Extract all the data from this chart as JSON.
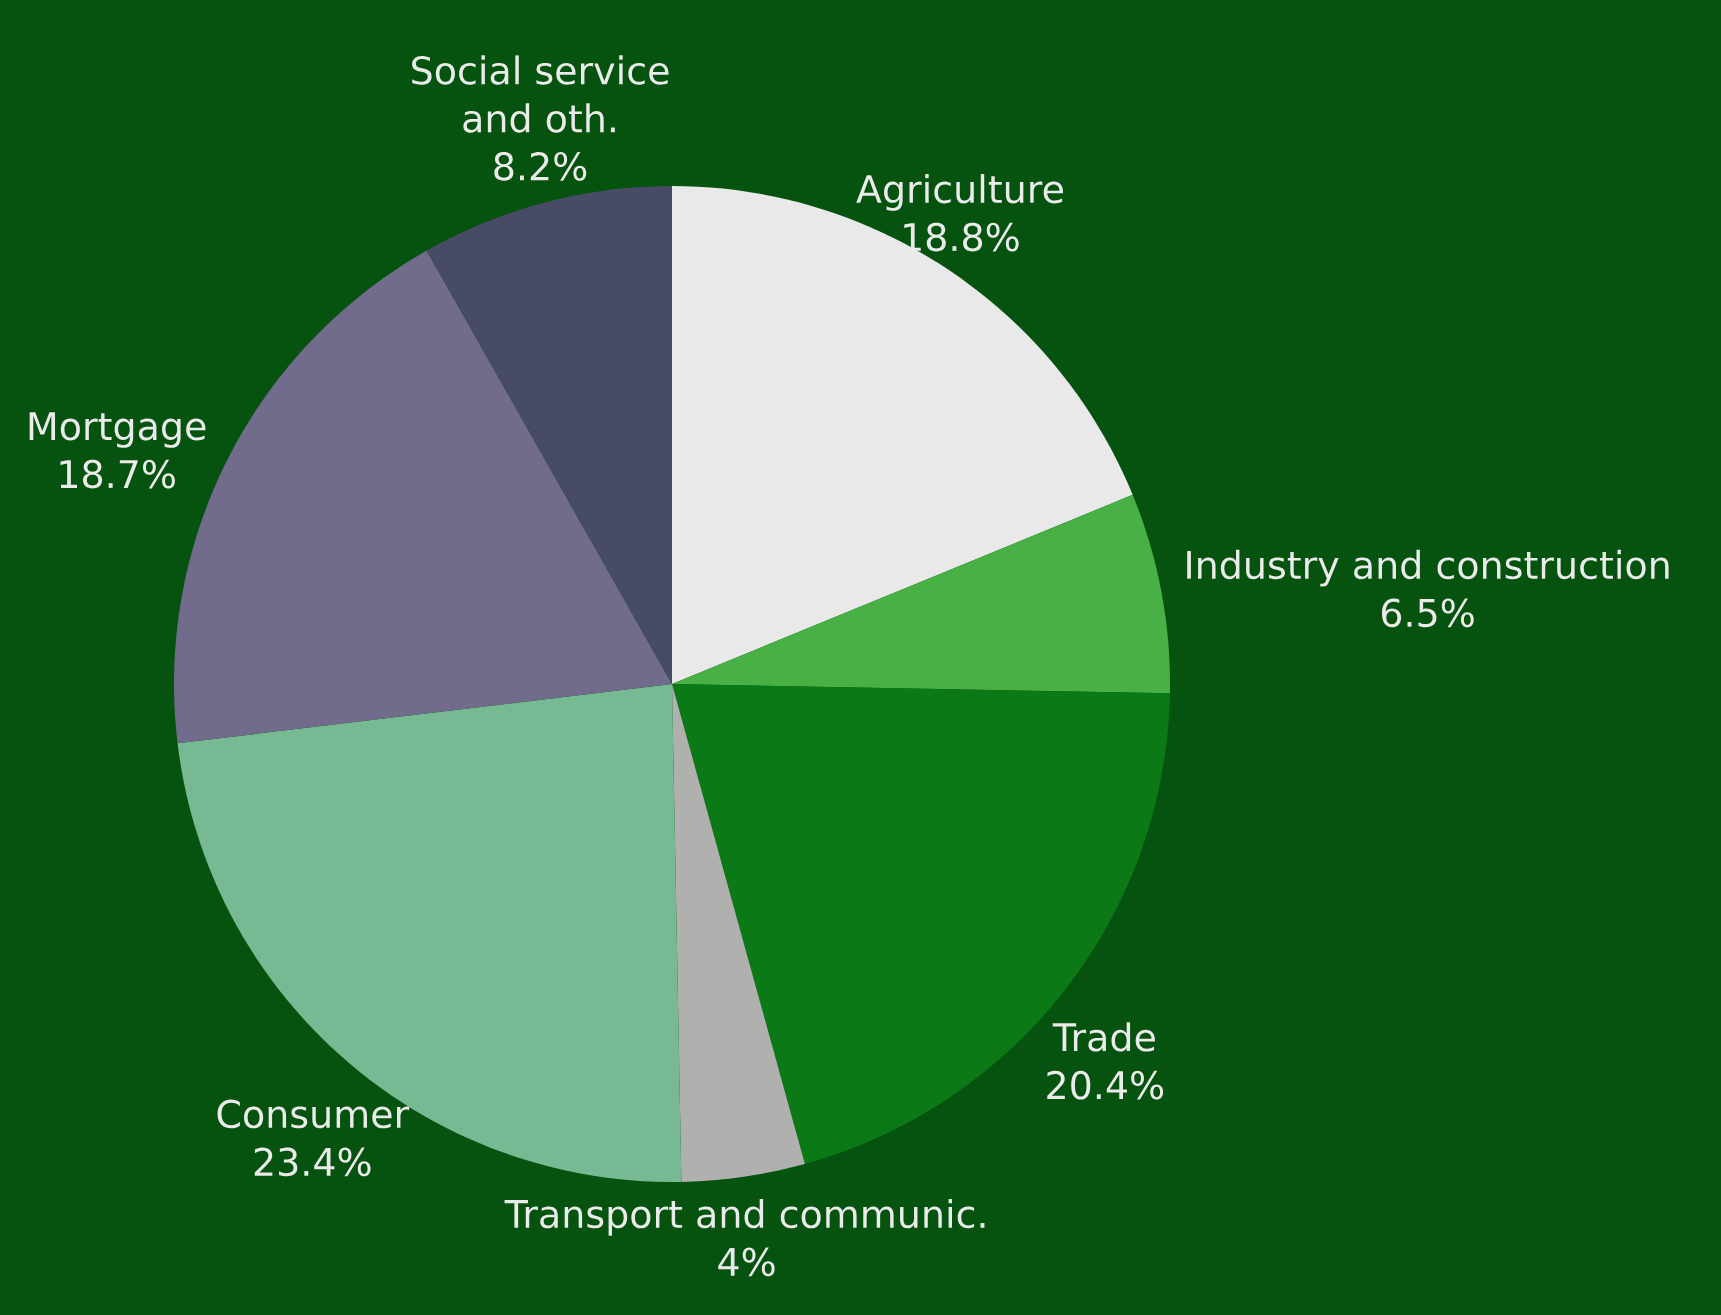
{
  "chart_data": {
    "type": "pie",
    "categories": [
      "Agriculture",
      "Industry and construction",
      "Trade",
      "Transport and communic.",
      "Consumer",
      "Mortgage",
      "Social service and oth."
    ],
    "values": [
      18.8,
      6.5,
      20.4,
      4,
      23.4,
      18.7,
      8.2
    ],
    "value_labels": [
      "18.8%",
      "6.5%",
      "20.4%",
      "4%",
      "23.4%",
      "18.7%",
      "8.2%"
    ],
    "colors": [
      "#e8e9e8",
      "#48b045",
      "#0b7a16",
      "#b0b0af",
      "#76b993",
      "#716b8c",
      "#484b66"
    ]
  }
}
